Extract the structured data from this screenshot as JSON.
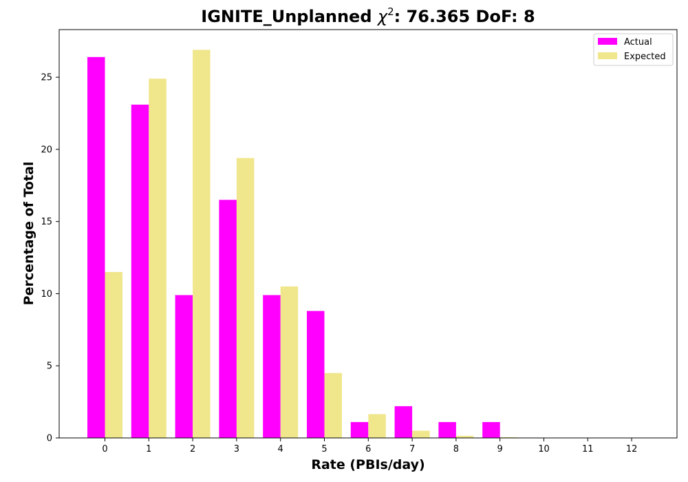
{
  "chart_data": {
    "type": "bar",
    "title": "IGNITE_Unplanned χ²: 76.365 DoF: 8",
    "title_parts": {
      "prefix": "IGNITE_Unplanned ",
      "chi": "χ",
      "superscript": "2",
      "suffix": ": 76.365 DoF: 8"
    },
    "xlabel": "Rate (PBIs/day)",
    "ylabel": "Percentage of Total",
    "categories": [
      "0",
      "1",
      "2",
      "3",
      "4",
      "5",
      "6",
      "7",
      "8",
      "9",
      "10",
      "11",
      "12"
    ],
    "series": [
      {
        "name": "Actual",
        "color": "#ff00ff",
        "values": [
          26.4,
          23.1,
          9.9,
          16.5,
          9.9,
          8.8,
          1.1,
          2.2,
          1.1,
          1.1,
          0,
          0,
          0
        ]
      },
      {
        "name": "Expected",
        "color": "#f0e68c",
        "values": [
          11.5,
          24.9,
          26.9,
          19.4,
          10.5,
          4.5,
          1.65,
          0.5,
          0.15,
          0.05,
          0,
          0,
          0
        ]
      }
    ],
    "ylim": [
      0,
      28.3
    ],
    "yticks": [
      0,
      5,
      10,
      15,
      20,
      25
    ],
    "grid": false,
    "legend_position": "top-right"
  }
}
